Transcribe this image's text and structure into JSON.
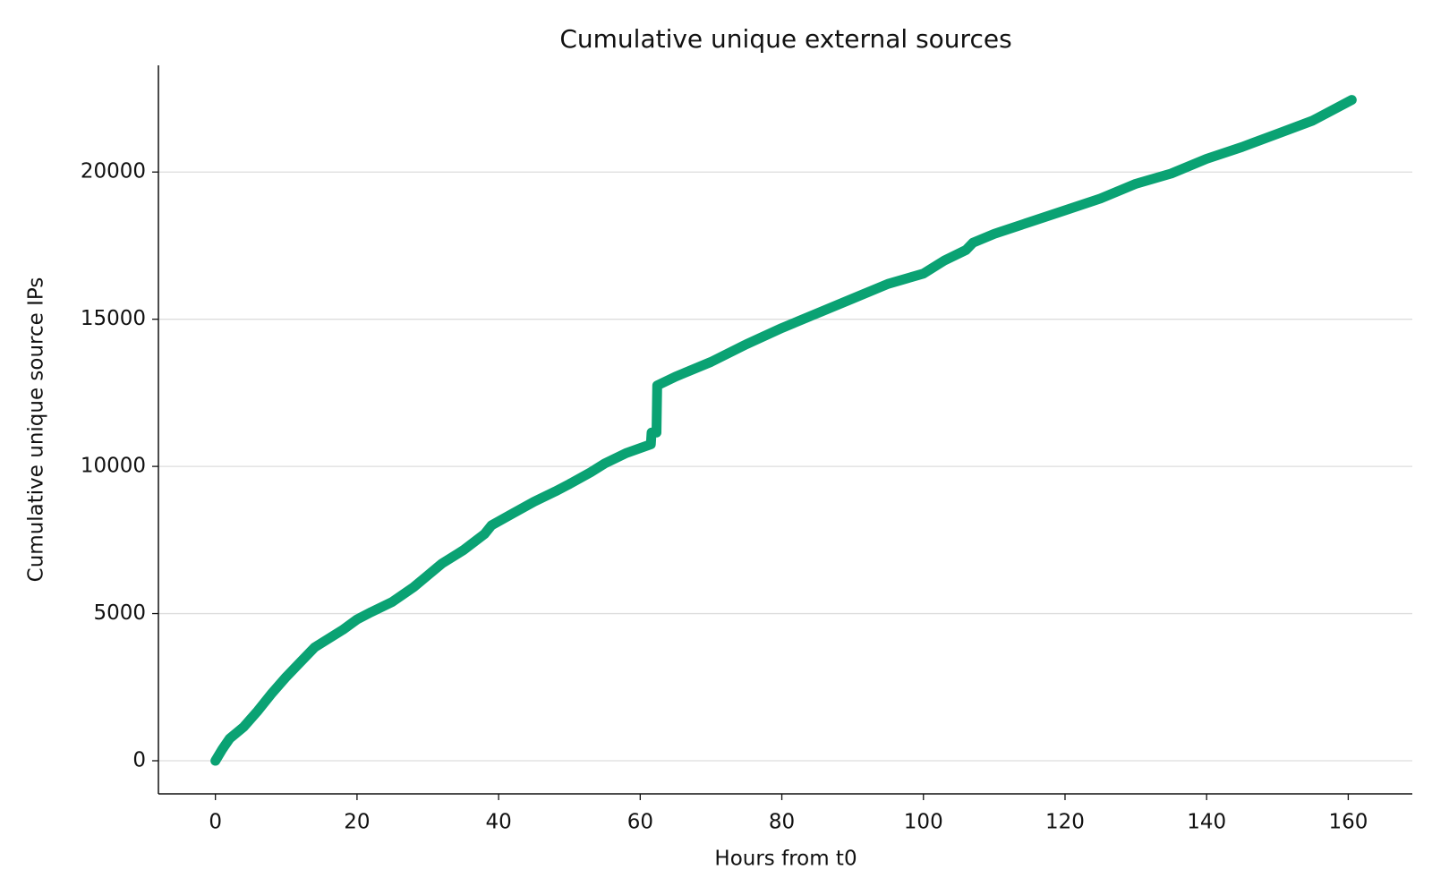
{
  "chart_data": {
    "type": "line",
    "title": "Cumulative unique external sources",
    "x_label": "Hours from t0",
    "y_label": "Cumulative unique source IPs",
    "x": [
      0,
      1,
      2,
      4,
      6,
      8,
      10,
      12,
      14,
      16,
      18,
      20,
      22,
      25,
      28,
      30,
      32,
      35,
      38,
      39,
      42,
      45,
      48,
      50,
      53,
      55,
      58,
      61.5,
      61.6,
      62.3,
      62.4,
      65,
      70,
      75,
      80,
      85,
      90,
      95,
      100,
      103,
      106,
      107,
      110,
      115,
      120,
      125,
      130,
      135,
      140,
      145,
      150,
      155,
      160.5
    ],
    "values": [
      0,
      400,
      750,
      1150,
      1700,
      2300,
      2850,
      3350,
      3850,
      4150,
      4450,
      4800,
      5050,
      5400,
      5900,
      6300,
      6700,
      7150,
      7700,
      8000,
      8400,
      8800,
      9150,
      9400,
      9800,
      10100,
      10450,
      10750,
      11150,
      11150,
      12750,
      13050,
      13550,
      14150,
      14700,
      15200,
      15700,
      16200,
      16550,
      17000,
      17350,
      17600,
      17900,
      18300,
      18700,
      19100,
      19600,
      19950,
      20450,
      20850,
      21300,
      21750,
      22450
    ],
    "color": "#0aa273",
    "xlim": [
      -8.05,
      169.05
    ],
    "ylim": [
      -1125,
      23625
    ],
    "xticks": [
      0,
      20,
      40,
      60,
      80,
      100,
      120,
      140,
      160
    ],
    "yticks": [
      0,
      5000,
      10000,
      15000,
      20000
    ],
    "grid": "y"
  }
}
